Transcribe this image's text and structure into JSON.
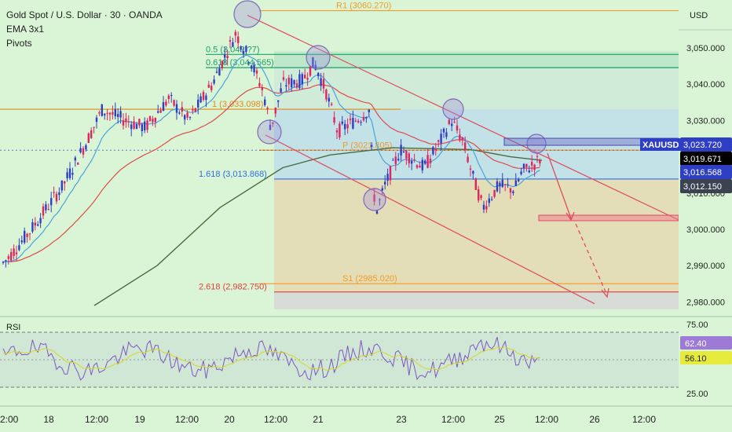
{
  "legend": {
    "title": "Gold Spot / U.S. Dollar · 30 · OANDA",
    "ema": "EMA 3x1",
    "pivots": "Pivots"
  },
  "price_axis": {
    "currency": "USD",
    "ticks": [
      3050,
      3040,
      3030,
      3020,
      3010,
      3000,
      2990,
      2980
    ],
    "tick_labels": [
      "3,050.000",
      "3,040.000",
      "3,030.000",
      "3,020.000",
      "3,010.000",
      "3,000.000",
      "2,990.000",
      "2,980.000"
    ],
    "range": [
      2976.2,
      3061.6
    ]
  },
  "time_axis": {
    "labels": [
      "2:00",
      "18",
      "12:00",
      "19",
      "12:00",
      "20",
      "12:00",
      "21",
      "23",
      "12:00",
      "25",
      "12:00",
      "26",
      "12:00"
    ]
  },
  "price_tags": [
    {
      "label": "XAUUSD",
      "value": "3,023.720",
      "color": "#2f3fc4",
      "text_color": "#ffffff"
    },
    {
      "label": "",
      "value": "3,019.671",
      "color": "#000000",
      "text_color": "#ffffff"
    },
    {
      "label": "",
      "value": "3,016.568",
      "color": "#2f3fc4",
      "text_color": "#ffffff"
    },
    {
      "label": "",
      "value": "3,012.150",
      "color": "#3b4250",
      "text_color": "#ffffff"
    }
  ],
  "levels": [
    {
      "label": "R1 (3060.270)",
      "price": 3060.27,
      "color": "#f39a2a"
    },
    {
      "label": "0.5 (3,04?.?7)",
      "price": 3048.2,
      "color": "#1aa06b"
    },
    {
      "label": "0.618 (3,044.565)",
      "price": 3044.565,
      "color": "#1aa06b"
    },
    {
      "label": "1 (3,033.098)",
      "price": 3033.098,
      "color": "#e08a1c"
    },
    {
      "label": "P (3021.805)",
      "price": 3021.805,
      "color": "#f39a2a"
    },
    {
      "label": "1.618 (3,013.868)",
      "price": 3013.868,
      "color": "#2f6fe0"
    },
    {
      "label": "S1 (2985.020)",
      "price": 2985.02,
      "color": "#f39a2a"
    },
    {
      "label": "2.618 (2,982.750)",
      "price": 2982.75,
      "color": "#e04040"
    }
  ],
  "rsi": {
    "label": "RSI",
    "ticks": [
      "75.00",
      "25.00"
    ],
    "value_rsi": "62.40",
    "value_ma": "56.10"
  },
  "colors": {
    "bull": "#2f3fc4",
    "bear": "#e0245e",
    "ema_fast": "#4aa3df",
    "ema_mid": "#e04b4b",
    "ema_slow": "#4c6b3d",
    "channel": "#e04b5f"
  },
  "chart_data": {
    "type": "line",
    "title": "Gold Spot / U.S. Dollar · 30 · OANDA",
    "xlabel": "",
    "ylabel": "",
    "ylim": [
      2976.2,
      3061.6
    ],
    "grid": false,
    "x": [
      "17 02:00",
      "18 00:00",
      "18 12:00",
      "19 00:00",
      "19 12:00",
      "20 00:00",
      "20 06:00",
      "20 12:00",
      "21 00:00",
      "21 12:00",
      "23 00:00",
      "23 06:00",
      "23 12:00",
      "25 00:00",
      "25 06:00",
      "25 12:00"
    ],
    "series": [
      {
        "name": "XAUUSD",
        "values": [
          2992,
          3015,
          3033,
          3030,
          3035,
          3048,
          3056,
          3028,
          3042,
          3032,
          3021,
          3028,
          3025,
          3005,
          3012,
          3019.7
        ]
      }
    ]
  }
}
